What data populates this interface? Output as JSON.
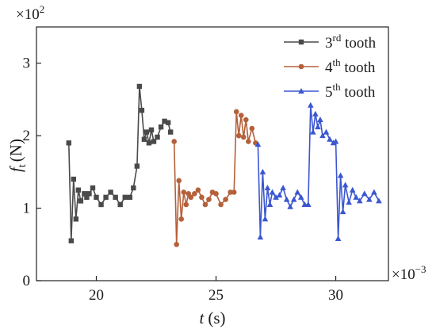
{
  "chart_data": {
    "type": "line",
    "title": "",
    "x_multiplier": "×10",
    "x_multiplier_exp": "−3",
    "y_multiplier": "×10",
    "y_multiplier_exp": "2",
    "xlabel": {
      "main": "t",
      "unit": "(s)"
    },
    "ylabel": {
      "main": "f",
      "sub": "t",
      "unit": "(N)"
    },
    "xlim": [
      17.5,
      32.2
    ],
    "ylim": [
      0,
      3.5
    ],
    "xticks": [
      20,
      25,
      30
    ],
    "yticks": [
      0,
      1,
      2,
      3
    ],
    "legend_position": "top-right",
    "legend": [
      {
        "pre": "3",
        "sup": "rd",
        "post": " tooth"
      },
      {
        "pre": "4",
        "sup": "th",
        "post": " tooth"
      },
      {
        "pre": "5",
        "sup": "th",
        "post": " tooth"
      }
    ],
    "series": [
      {
        "name": "3rd tooth",
        "color": "#4a4a4a",
        "marker": "square",
        "x": [
          18.85,
          18.95,
          19.05,
          19.15,
          19.25,
          19.35,
          19.5,
          19.6,
          19.7,
          19.85,
          20.0,
          20.2,
          20.4,
          20.6,
          20.8,
          21.0,
          21.2,
          21.4,
          21.55,
          21.7,
          21.8,
          21.9,
          22.0,
          22.1,
          22.2,
          22.3,
          22.4,
          22.55,
          22.7,
          22.85,
          23.0,
          23.1
        ],
        "y": [
          1.9,
          0.55,
          1.4,
          0.85,
          1.25,
          1.1,
          1.2,
          1.15,
          1.2,
          1.28,
          1.15,
          1.05,
          1.15,
          1.22,
          1.15,
          1.05,
          1.15,
          1.15,
          1.28,
          1.58,
          2.68,
          2.35,
          1.95,
          2.05,
          1.9,
          2.08,
          1.92,
          1.98,
          2.12,
          2.2,
          2.18,
          2.05
        ]
      },
      {
        "name": "4th tooth",
        "color": "#b5603a",
        "marker": "circle",
        "x": [
          23.25,
          23.35,
          23.45,
          23.55,
          23.65,
          23.75,
          23.85,
          23.95,
          24.1,
          24.25,
          24.4,
          24.55,
          24.7,
          24.85,
          25.0,
          25.2,
          25.4,
          25.6,
          25.75,
          25.85,
          25.95,
          26.05,
          26.15,
          26.25,
          26.35,
          26.5,
          26.65
        ],
        "y": [
          1.92,
          0.5,
          1.38,
          0.85,
          1.22,
          1.05,
          1.2,
          1.15,
          1.2,
          1.25,
          1.15,
          1.05,
          1.12,
          1.22,
          1.2,
          1.05,
          1.12,
          1.22,
          1.22,
          2.33,
          2.0,
          2.28,
          1.98,
          2.22,
          1.92,
          2.1,
          1.9
        ]
      },
      {
        "name": "5th tooth",
        "color": "#3b56d0",
        "marker": "triangle",
        "x": [
          26.75,
          26.85,
          26.95,
          27.05,
          27.15,
          27.25,
          27.35,
          27.5,
          27.65,
          27.8,
          27.95,
          28.1,
          28.25,
          28.4,
          28.55,
          28.7,
          28.85,
          28.95,
          29.05,
          29.15,
          29.25,
          29.35,
          29.45,
          29.6,
          29.75,
          29.9,
          30.0,
          30.1,
          30.2,
          30.3,
          30.4,
          30.55,
          30.7,
          30.85,
          31.0,
          31.2,
          31.4,
          31.6,
          31.8
        ],
        "y": [
          1.88,
          0.6,
          1.5,
          0.85,
          1.28,
          1.05,
          1.22,
          1.15,
          1.18,
          1.28,
          1.12,
          1.02,
          1.12,
          1.22,
          1.15,
          1.05,
          1.05,
          2.42,
          2.05,
          2.3,
          2.12,
          2.22,
          2.0,
          2.05,
          1.95,
          1.9,
          1.92,
          0.58,
          1.45,
          0.95,
          1.32,
          1.08,
          1.25,
          1.15,
          1.1,
          1.2,
          1.12,
          1.22,
          1.1
        ]
      }
    ]
  }
}
